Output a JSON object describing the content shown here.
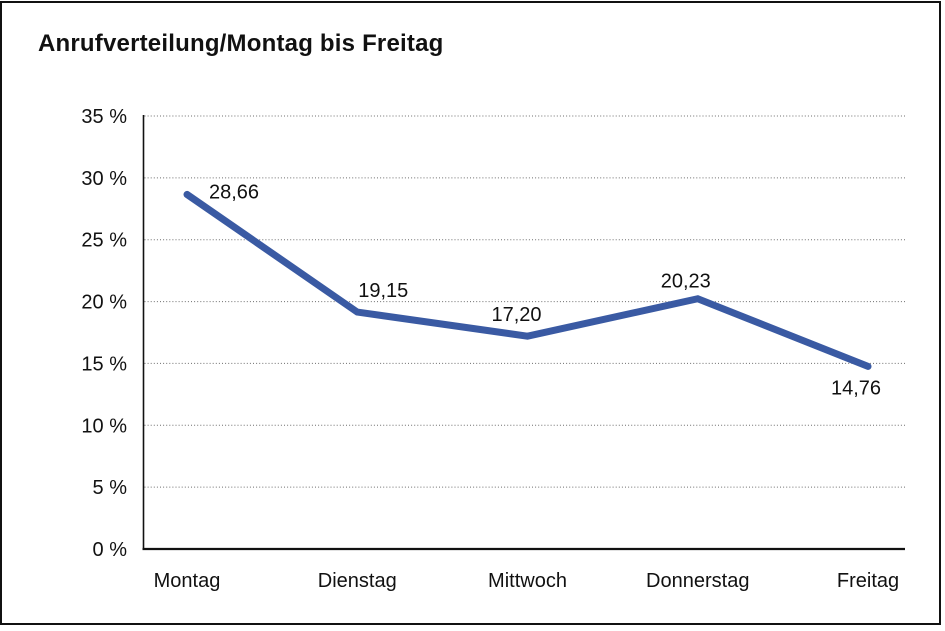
{
  "chart_data": {
    "type": "line",
    "title": "Anrufverteilung/Montag bis Freitag",
    "categories": [
      "Montag",
      "Dienstag",
      "Mittwoch",
      "Donnerstag",
      "Freitag"
    ],
    "series": [
      {
        "name": "Anrufverteilung",
        "values": [
          28.66,
          19.15,
          17.2,
          20.23,
          14.76
        ],
        "value_labels": [
          "28,66",
          "19,15",
          "17,20",
          "20,23",
          "14,76"
        ]
      }
    ],
    "xlabel": "",
    "ylabel": "",
    "ylim": [
      0,
      35
    ],
    "y_tick_values": [
      35,
      30,
      25,
      20,
      15,
      10,
      5,
      0
    ],
    "y_tick_labels": [
      "35 %",
      "30 %",
      "25 %",
      "20 %",
      "15 %",
      "10 %",
      "5 %",
      "0 %"
    ],
    "grid": "horizontal-dotted",
    "legend": "none",
    "colors": {
      "line": "#3A5AA3",
      "axis": "#111111",
      "gridline": "#6e6e6e",
      "text": "#111111",
      "background": "#ffffff",
      "border": "#111111"
    }
  }
}
